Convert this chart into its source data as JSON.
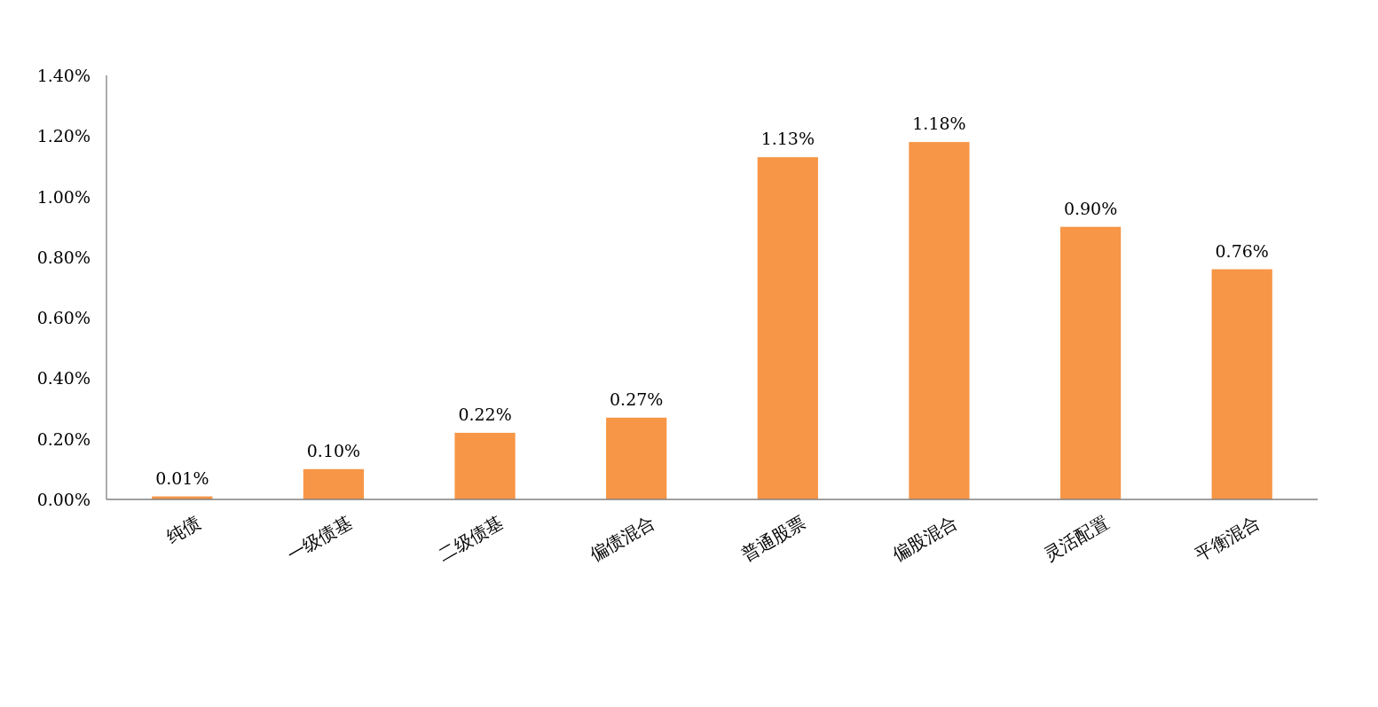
{
  "chart_data": {
    "type": "bar",
    "categories": [
      "纯债",
      "一级债基",
      "二级债基",
      "偏债混合",
      "普通股票",
      "偏股混合",
      "灵活配置",
      "平衡混合"
    ],
    "values": [
      0.01,
      0.1,
      0.22,
      0.27,
      1.13,
      1.18,
      0.9,
      0.76
    ],
    "value_labels": [
      "0.01%",
      "0.10%",
      "0.22%",
      "0.27%",
      "1.13%",
      "1.18%",
      "0.90%",
      "0.76%"
    ],
    "color": "#f79646",
    "ylim": [
      0,
      1.4
    ],
    "yticks": [
      {
        "value": 0,
        "label": "0.00%"
      },
      {
        "value": 0.2,
        "label": "0.20%"
      },
      {
        "value": 0.4,
        "label": "0.40%"
      },
      {
        "value": 0.6,
        "label": "0.60%"
      },
      {
        "value": 0.8,
        "label": "0.80%"
      },
      {
        "value": 1.0,
        "label": "1.00%"
      },
      {
        "value": 1.2,
        "label": "1.20%"
      },
      {
        "value": 1.4,
        "label": "1.40%"
      }
    ]
  }
}
